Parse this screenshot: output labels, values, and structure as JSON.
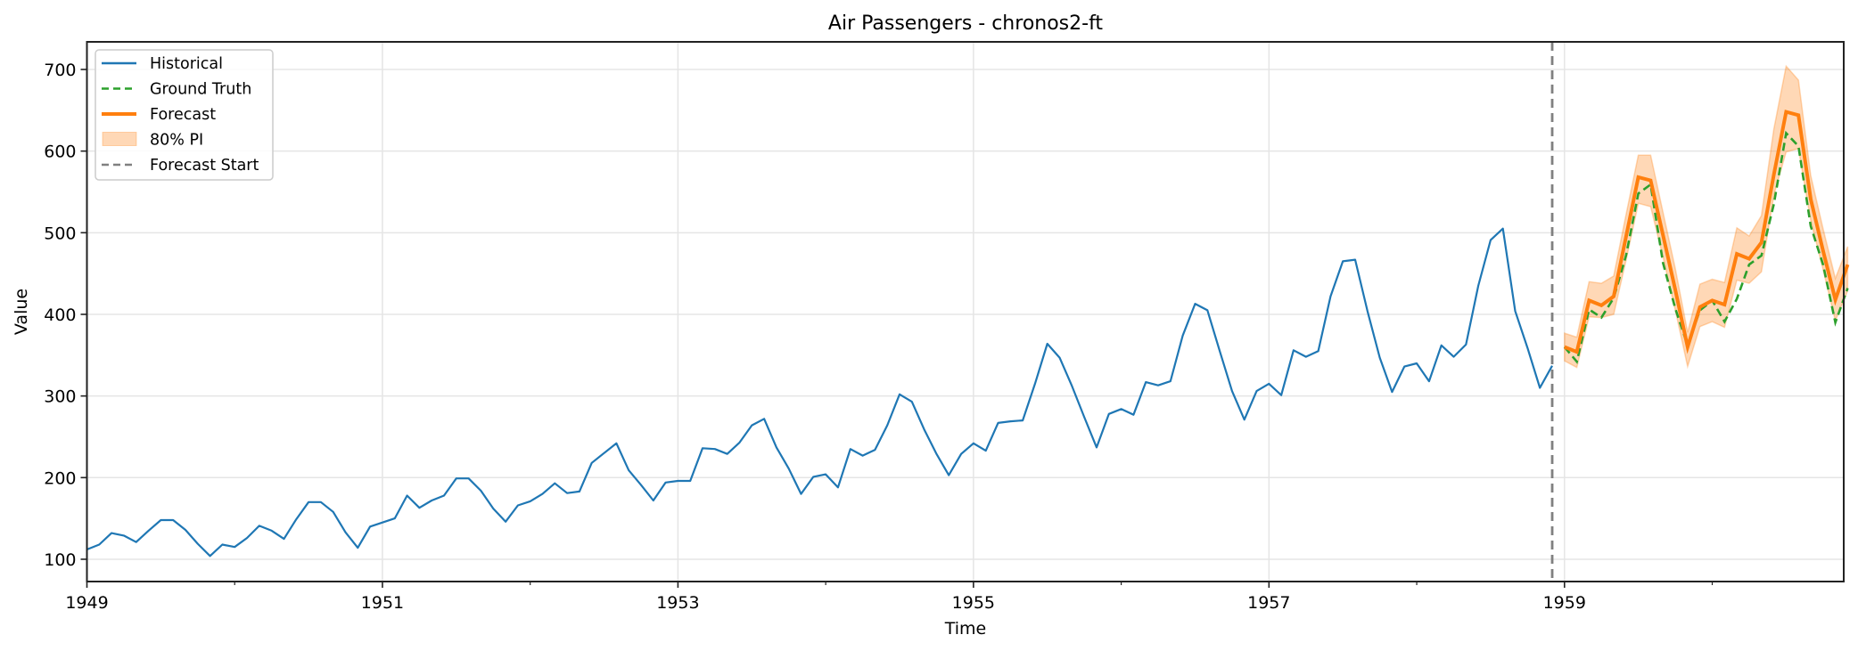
{
  "chart_data": {
    "type": "line",
    "title": "Air Passengers - chronos2-ft",
    "xlabel": "Time",
    "ylabel": "Value",
    "xlim": [
      1949.0,
      1960.89
    ],
    "ylim": [
      72.7,
      733.8
    ],
    "grid": true,
    "legend_position": "upper left",
    "x_ticks": [
      {
        "value": 1949,
        "label": "1949"
      },
      {
        "value": 1950,
        "label": ""
      },
      {
        "value": 1951,
        "label": "1951"
      },
      {
        "value": 1952,
        "label": ""
      },
      {
        "value": 1953,
        "label": "1953"
      },
      {
        "value": 1954,
        "label": ""
      },
      {
        "value": 1955,
        "label": "1955"
      },
      {
        "value": 1956,
        "label": ""
      },
      {
        "value": 1957,
        "label": "1957"
      },
      {
        "value": 1958,
        "label": ""
      },
      {
        "value": 1959,
        "label": "1959"
      },
      {
        "value": 1960,
        "label": ""
      }
    ],
    "y_ticks": [
      100,
      200,
      300,
      400,
      500,
      600,
      700
    ],
    "forecast_start": "1958-12",
    "forecast_start_x": 1958.917,
    "series": [
      {
        "name": "Historical",
        "style": "solid",
        "color": "#1f77b4",
        "start": "1949-01",
        "x_start": 1949.0,
        "values": [
          112,
          118,
          132,
          129,
          121,
          135,
          148,
          148,
          136,
          119,
          104,
          118,
          115,
          126,
          141,
          135,
          125,
          149,
          170,
          170,
          158,
          133,
          114,
          140,
          145,
          150,
          178,
          163,
          172,
          178,
          199,
          199,
          184,
          162,
          146,
          166,
          171,
          180,
          193,
          181,
          183,
          218,
          230,
          242,
          209,
          191,
          172,
          194,
          196,
          196,
          236,
          235,
          229,
          243,
          264,
          272,
          237,
          211,
          180,
          201,
          204,
          188,
          235,
          227,
          234,
          264,
          302,
          293,
          259,
          229,
          203,
          229,
          242,
          233,
          267,
          269,
          270,
          315,
          364,
          347,
          312,
          274,
          237,
          278,
          284,
          277,
          317,
          313,
          318,
          374,
          413,
          405,
          355,
          306,
          271,
          306,
          315,
          301,
          356,
          348,
          355,
          422,
          465,
          467,
          404,
          347,
          305,
          336,
          340,
          318,
          362,
          348,
          363,
          435,
          491,
          505,
          404,
          359,
          310,
          337
        ]
      },
      {
        "name": "Ground Truth",
        "style": "dashed",
        "color": "#2ca02c",
        "start": "1959-01",
        "x_start": 1959.0,
        "values": [
          360,
          342,
          406,
          396,
          420,
          472,
          548,
          559,
          463,
          407,
          362,
          405,
          417,
          391,
          419,
          461,
          472,
          535,
          622,
          606,
          508,
          461,
          390,
          432
        ]
      },
      {
        "name": "Forecast",
        "style": "solid",
        "color": "#ff7f0e",
        "start": "1959-01",
        "x_start": 1959.0,
        "values": [
          360,
          354,
          417,
          411,
          422,
          495,
          568,
          564,
          497,
          430,
          360,
          409,
          417,
          412,
          474,
          468,
          488,
          571,
          648,
          644,
          541,
          478,
          418,
          461
        ]
      },
      {
        "name": "80% PI",
        "style": "band",
        "color": "#ff7f0e",
        "start": "1959-01",
        "x_start": 1959.0,
        "upper": [
          377,
          372,
          440,
          438,
          447,
          522,
          595,
          595,
          525,
          456,
          378,
          437,
          443,
          439,
          506,
          496,
          521,
          627,
          704,
          687,
          570,
          505,
          444,
          483
        ],
        "lower": [
          343,
          335,
          397,
          396,
          400,
          466,
          536,
          532,
          470,
          405,
          336,
          385,
          391,
          384,
          442,
          438,
          452,
          546,
          599,
          603,
          515,
          455,
          392,
          429
        ]
      }
    ],
    "legend": [
      {
        "label": "Historical",
        "kind": "line",
        "color": "#1f77b4",
        "dash": ""
      },
      {
        "label": "Ground Truth",
        "kind": "line",
        "color": "#2ca02c",
        "dash": "8,5"
      },
      {
        "label": "Forecast",
        "kind": "line-thick",
        "color": "#ff7f0e",
        "dash": ""
      },
      {
        "label": "80% PI",
        "kind": "patch",
        "color": "#ff7f0e",
        "dash": ""
      },
      {
        "label": "Forecast Start",
        "kind": "line",
        "color": "#808080",
        "dash": "8,5"
      }
    ]
  }
}
